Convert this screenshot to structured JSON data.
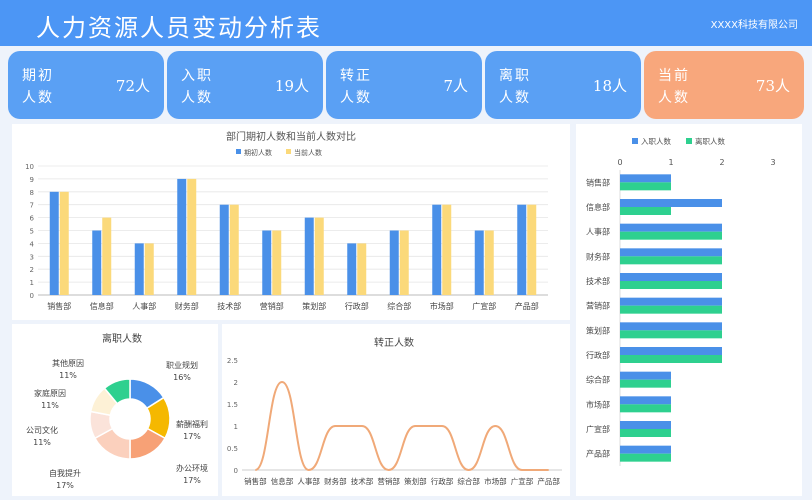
{
  "header": {
    "title": "人力资源人员变动分析表",
    "company": "XXXX科技有限公司"
  },
  "kpis": [
    {
      "line1": "期初",
      "line2": "人数",
      "value": "72人"
    },
    {
      "line1": "入职",
      "line2": "人数",
      "value": "19人"
    },
    {
      "line1": "转正",
      "line2": "人数",
      "value": "7人"
    },
    {
      "line1": "离职",
      "line2": "人数",
      "value": "18人"
    },
    {
      "line1": "当前",
      "line2": "人数",
      "value": "73人"
    }
  ],
  "colors": {
    "header": "#4c96f5",
    "kpi": "#5aa0f4",
    "kpi_highlight": "#f8a77c",
    "blue": "#4a90e8",
    "yellow": "#fbd97a",
    "green": "#2ed08f",
    "curve": "#f0a978"
  },
  "chart_data": [
    {
      "type": "bar",
      "title": "部门期初人数和当前人数对比",
      "categories": [
        "销售部",
        "信息部",
        "人事部",
        "财务部",
        "技术部",
        "营销部",
        "策划部",
        "行政部",
        "综合部",
        "市场部",
        "广宣部",
        "产品部"
      ],
      "series": [
        {
          "name": "期初人数",
          "values": [
            8,
            5,
            4,
            9,
            7,
            5,
            6,
            4,
            5,
            7,
            5,
            7
          ]
        },
        {
          "name": "当前人数",
          "values": [
            8,
            6,
            4,
            9,
            7,
            5,
            6,
            4,
            5,
            7,
            5,
            7
          ]
        }
      ],
      "ylim": [
        0,
        10
      ],
      "yticks": [
        "0",
        "1",
        "2",
        "3",
        "4",
        "5",
        "6",
        "7",
        "8",
        "9",
        "10"
      ],
      "legend": "top"
    },
    {
      "type": "pie",
      "title": "离职人数",
      "labels": [
        "职业规划",
        "薪酬福利",
        "办公环境",
        "自我提升",
        "公司文化",
        "家庭原因",
        "其他原因"
      ],
      "percents": [
        "16%",
        "17%",
        "17%",
        "17%",
        "11%",
        "11%",
        "11%"
      ],
      "values": [
        16,
        17,
        17,
        17,
        11,
        11,
        11
      ],
      "colors": [
        "#4a90e8",
        "#f5b800",
        "#f7a176",
        "#fbd0bd",
        "#fbe3da",
        "#fdf1d6",
        "#2ed08f"
      ]
    },
    {
      "type": "line",
      "title": "转正人数",
      "categories": [
        "销售部",
        "信息部",
        "人事部",
        "财务部",
        "技术部",
        "营销部",
        "策划部",
        "行政部",
        "综合部",
        "市场部",
        "广宣部",
        "产品部"
      ],
      "values": [
        0,
        2,
        0,
        1,
        1,
        0,
        1,
        1,
        0,
        1,
        0,
        0
      ],
      "ylim": [
        0,
        2.5
      ],
      "yticks": [
        "0",
        "0.5",
        "1",
        "1.5",
        "2",
        "2.5"
      ]
    },
    {
      "type": "bar",
      "orientation": "horizontal",
      "categories": [
        "销售部",
        "信息部",
        "人事部",
        "财务部",
        "技术部",
        "营销部",
        "策划部",
        "行政部",
        "综合部",
        "市场部",
        "广宣部",
        "产品部"
      ],
      "series": [
        {
          "name": "入职人数",
          "values": [
            1,
            2,
            2,
            2,
            2,
            2,
            2,
            2,
            1,
            1,
            1,
            1
          ]
        },
        {
          "name": "离职人数",
          "values": [
            1,
            1,
            2,
            2,
            2,
            2,
            2,
            2,
            1,
            1,
            1,
            1
          ]
        }
      ],
      "xlim": [
        0,
        3
      ],
      "xticks": [
        "0",
        "1",
        "2",
        "3"
      ],
      "legend": "top"
    }
  ]
}
